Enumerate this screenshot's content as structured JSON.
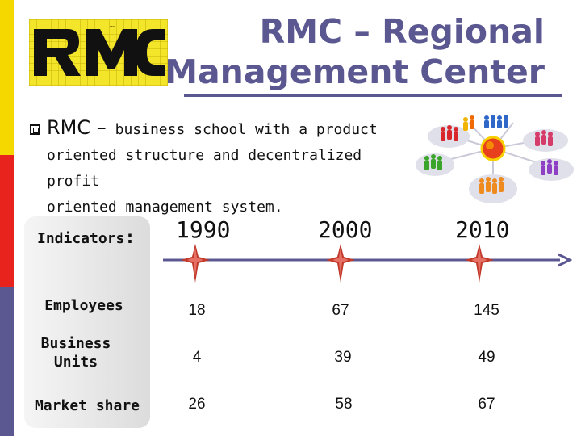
{
  "header": {
    "logo_text": "RMC",
    "title_line1": "RMC – Regional",
    "title_line2": "Management Center"
  },
  "body": {
    "lead": "RMC –",
    "line1_rest": " business school with a product",
    "line2": "oriented structure and decentralized profit",
    "line3": "oriented management system."
  },
  "table": {
    "header_label": "Indicators",
    "header_colon": ":",
    "years": [
      "1990",
      "2000",
      "2010"
    ],
    "rows": [
      {
        "label": "Employees",
        "values": [
          "18",
          "67",
          "145"
        ]
      },
      {
        "label": "Business Units",
        "label_line1": "Business",
        "label_line2": "Units",
        "values": [
          "4",
          "39",
          "49"
        ]
      },
      {
        "label": "Market share",
        "values": [
          "26",
          "58",
          "67"
        ]
      }
    ]
  },
  "colors": {
    "accent": "#5b5891",
    "sidebar_yellow": "#f5d800",
    "sidebar_red": "#e8231e",
    "sidebar_purple": "#5b5891",
    "marker": "#c0392b"
  }
}
